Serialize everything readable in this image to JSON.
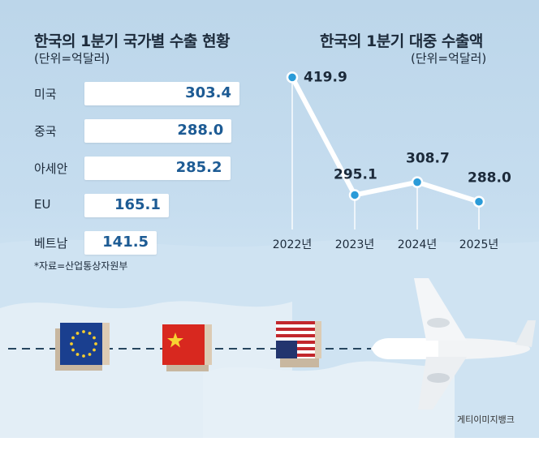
{
  "chart_data": [
    {
      "type": "bar",
      "orientation": "horizontal",
      "title": "한국의 1분기 국가별 수출 현황",
      "subtitle": "(단위=억달러)",
      "categories": [
        "미국",
        "중국",
        "아세안",
        "EU",
        "베트남"
      ],
      "values": [
        303.4,
        288.0,
        285.2,
        165.1,
        141.5
      ],
      "value_labels": [
        "303.4",
        "288.0",
        "285.2",
        "165.1",
        "141.5"
      ],
      "note": "*자료=산업통상자원부"
    },
    {
      "type": "line",
      "title": "한국의 1분기 대중 수출액",
      "subtitle": "(단위=억달러)",
      "x": [
        "2022년",
        "2023년",
        "2024년",
        "2025년"
      ],
      "values": [
        419.9,
        295.1,
        308.7,
        288.0
      ],
      "value_labels": [
        "419.9",
        "295.1",
        "308.7",
        "288.0"
      ],
      "ylim": [
        200,
        440
      ]
    }
  ],
  "credit": "게티이미지뱅크",
  "colors": {
    "bar_value": "#1d5b94",
    "line": "#ffffff",
    "marker": "#2b9bd8",
    "background": "#c3dbee"
  },
  "decor_icons": [
    "eu-flag-icon",
    "china-flag-icon",
    "usa-flag-icon",
    "airplane-icon",
    "map-background"
  ]
}
